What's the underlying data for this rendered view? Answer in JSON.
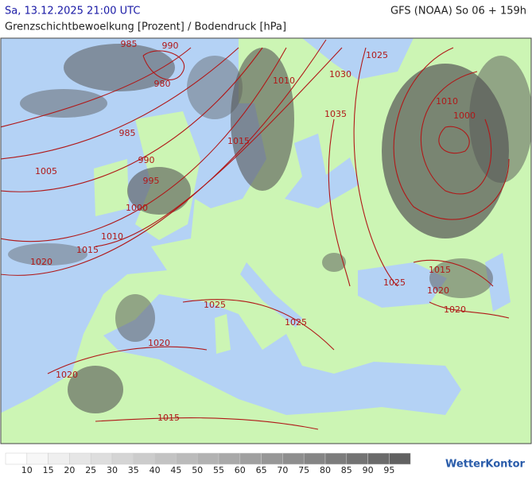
{
  "header": {
    "datetime": "Sa, 13.12.2025 21:00 UTC",
    "model": "GFS (NOAA) So 06 + 159h",
    "title": "Grenzschichtbewoelkung [Prozent] / Bodendruck [hPa]"
  },
  "map": {
    "isobar_labels": [
      985,
      990,
      980,
      1025,
      1010,
      1030,
      1010,
      1000,
      1035,
      985,
      1015,
      990,
      1005,
      995,
      1000,
      1010,
      1015,
      1020,
      1015,
      1025,
      1020,
      1025,
      1020,
      1025,
      1020,
      1020,
      1015
    ]
  },
  "legend": {
    "colors": [
      "#ffffff",
      "#f7f7f7",
      "#efefef",
      "#e6e6e6",
      "#dedede",
      "#d5d5d5",
      "#cccccc",
      "#c3c3c3",
      "#bbbbbb",
      "#b2b2b2",
      "#a9a9a9",
      "#a0a0a0",
      "#979797",
      "#8e8e8e",
      "#858585",
      "#7c7c7c",
      "#737373",
      "#6a6a6a",
      "#616161"
    ],
    "labels": [
      10,
      15,
      20,
      25,
      30,
      35,
      40,
      45,
      50,
      55,
      60,
      65,
      70,
      75,
      80,
      85,
      90,
      95
    ]
  },
  "logo": "WetterKontor"
}
